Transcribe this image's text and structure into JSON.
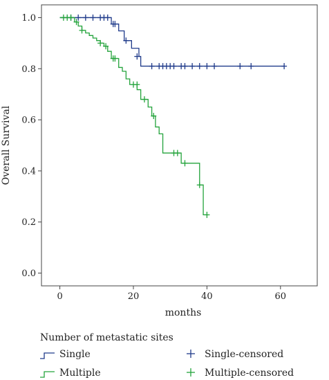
{
  "chart_data": {
    "type": "line",
    "subtype": "kaplan-meier",
    "title": "",
    "xlabel": "months",
    "ylabel": "Overall Survival",
    "xlim": [
      -5,
      70
    ],
    "ylim": [
      -0.05,
      1.05
    ],
    "xticks": [
      "0",
      "20",
      "40",
      "60"
    ],
    "yticks": [
      "0.0",
      "0.2",
      "0.4",
      "0.6",
      "0.8",
      "1.0"
    ],
    "grid": false,
    "legend": {
      "title": "Number of metastatic sites",
      "placement": "bottom",
      "entries": [
        "Single",
        "Multiple",
        "Single-censored",
        "Multiple-censored"
      ]
    },
    "series": [
      {
        "name": "Single",
        "color": "#1f3a8a",
        "steps": [
          [
            0,
            1.0
          ],
          [
            14,
            0.975
          ],
          [
            16,
            0.948
          ],
          [
            17.5,
            0.91
          ],
          [
            19.5,
            0.88
          ],
          [
            21.5,
            0.848
          ],
          [
            22,
            0.81
          ],
          [
            61,
            0.81
          ]
        ],
        "censored": [
          [
            3,
            1.0
          ],
          [
            5,
            1.0
          ],
          [
            7,
            1.0
          ],
          [
            9,
            1.0
          ],
          [
            11,
            1.0
          ],
          [
            12,
            1.0
          ],
          [
            13,
            1.0
          ],
          [
            14.5,
            0.975
          ],
          [
            15,
            0.975
          ],
          [
            18,
            0.91
          ],
          [
            21,
            0.848
          ],
          [
            25,
            0.81
          ],
          [
            27,
            0.81
          ],
          [
            28,
            0.81
          ],
          [
            29,
            0.81
          ],
          [
            30,
            0.81
          ],
          [
            31,
            0.81
          ],
          [
            33,
            0.81
          ],
          [
            34,
            0.81
          ],
          [
            36,
            0.81
          ],
          [
            38,
            0.81
          ],
          [
            40,
            0.81
          ],
          [
            42,
            0.81
          ],
          [
            49,
            0.81
          ],
          [
            52,
            0.81
          ],
          [
            61,
            0.81
          ]
        ]
      },
      {
        "name": "Multiple",
        "color": "#23a33b",
        "steps": [
          [
            0,
            1.0
          ],
          [
            4,
            0.983
          ],
          [
            5,
            0.967
          ],
          [
            6,
            0.95
          ],
          [
            7,
            0.94
          ],
          [
            8,
            0.93
          ],
          [
            9,
            0.92
          ],
          [
            10,
            0.91
          ],
          [
            11,
            0.9
          ],
          [
            12,
            0.888
          ],
          [
            13,
            0.868
          ],
          [
            14,
            0.84
          ],
          [
            16,
            0.805
          ],
          [
            17,
            0.79
          ],
          [
            18,
            0.76
          ],
          [
            19,
            0.738
          ],
          [
            21,
            0.718
          ],
          [
            22,
            0.68
          ],
          [
            24,
            0.65
          ],
          [
            25,
            0.615
          ],
          [
            26,
            0.572
          ],
          [
            27,
            0.545
          ],
          [
            28,
            0.47
          ],
          [
            33,
            0.43
          ],
          [
            38,
            0.345
          ],
          [
            39,
            0.228
          ],
          [
            40,
            0.228
          ]
        ],
        "censored": [
          [
            1,
            1.0
          ],
          [
            2,
            1.0
          ],
          [
            3,
            1.0
          ],
          [
            4.5,
            0.983
          ],
          [
            6,
            0.95
          ],
          [
            11,
            0.9
          ],
          [
            12.5,
            0.888
          ],
          [
            14.5,
            0.84
          ],
          [
            15,
            0.84
          ],
          [
            20,
            0.738
          ],
          [
            21,
            0.738
          ],
          [
            23,
            0.68
          ],
          [
            25.5,
            0.615
          ],
          [
            31,
            0.47
          ],
          [
            32,
            0.47
          ],
          [
            34,
            0.43
          ],
          [
            38,
            0.345
          ],
          [
            40,
            0.228
          ]
        ]
      }
    ]
  }
}
